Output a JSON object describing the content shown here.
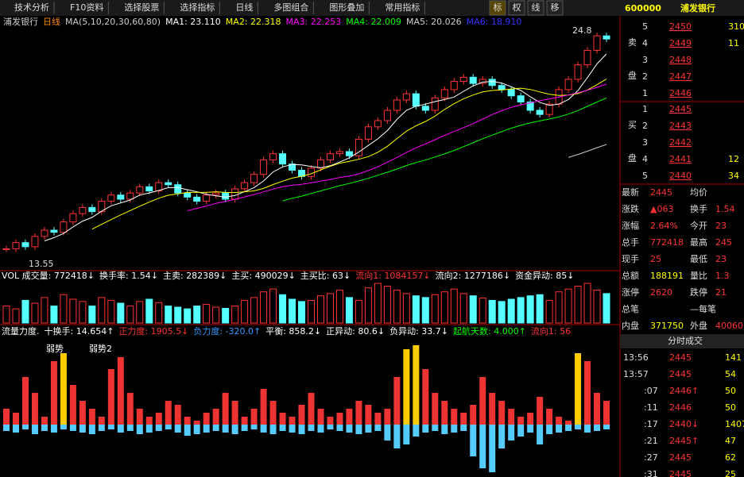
{
  "toolbar": {
    "menus": [
      "技术分析",
      "F10资料",
      "选择股票",
      "选择指标",
      "日线",
      "多图组合",
      "图形叠加",
      "常用指标"
    ],
    "buttons": [
      "标",
      "权",
      "线",
      "移"
    ],
    "stock_code": "600000",
    "stock_name": "浦发银行"
  },
  "main": {
    "name": "浦发银行",
    "period": "日线",
    "ma_label": "MA(5,10,20,30,60,80)",
    "ma_values": [
      "MA1: 23.110",
      "MA2: 22.318",
      "MA3: 22.253",
      "MA4: 22.009",
      "MA5: 20.026",
      "MA6: 18.910"
    ],
    "price_high": 24.8,
    "price_low": 13.55,
    "closes": [
      14.3,
      14.6,
      14.4,
      14.9,
      15.2,
      15.1,
      15.6,
      16.0,
      16.3,
      16.1,
      16.6,
      16.9,
      16.7,
      17.0,
      17.3,
      17.1,
      17.5,
      17.4,
      17.0,
      16.8,
      16.6,
      16.9,
      17.0,
      16.7,
      17.2,
      17.5,
      17.9,
      18.6,
      18.9,
      18.4,
      18.1,
      17.8,
      18.2,
      18.6,
      18.9,
      19.0,
      18.8,
      19.6,
      20.2,
      20.5,
      21.0,
      21.5,
      21.8,
      21.2,
      21.0,
      21.6,
      22.0,
      22.4,
      22.6,
      22.3,
      22.5,
      22.2,
      22.0,
      21.7,
      21.4,
      21.0,
      20.8,
      21.3,
      22.0,
      22.5,
      23.2,
      23.9,
      24.6,
      24.45
    ]
  },
  "volume": {
    "items": [
      "VOL 成交量: 772418↓",
      "换手率: 1.54↓",
      "主卖: 282389↓",
      "主买: 490029↓",
      "主买比: 63↓",
      "流向1: 1084157↓",
      "流向2: 1277186↓",
      "资金异动: 85↓"
    ],
    "bars": [
      30,
      25,
      40,
      35,
      45,
      30,
      50,
      42,
      38,
      30,
      45,
      40,
      35,
      30,
      38,
      42,
      36,
      30,
      28,
      25,
      30,
      33,
      28,
      26,
      30,
      40,
      45,
      55,
      60,
      50,
      42,
      38,
      40,
      48,
      52,
      58,
      45,
      40,
      62,
      70,
      65,
      58,
      52,
      48,
      45,
      50,
      55,
      60,
      52,
      48,
      44,
      40,
      38,
      42,
      45,
      48,
      50,
      40,
      55,
      60,
      65,
      70,
      58,
      52
    ]
  },
  "flow": {
    "items": [
      "流量力度.",
      "十换手: 14.654↑",
      "正力度: 1905.5↓",
      "负力度: -320.0↑",
      "平衡: 858.2↓",
      "正异动: 80.6↓",
      "负异动: 33.7↓",
      "起航天数: 4.000↑",
      "流向1: 56"
    ],
    "signals": [
      "弱势",
      "弱势2"
    ],
    "pos": [
      20,
      15,
      60,
      40,
      10,
      80,
      90,
      50,
      30,
      20,
      10,
      70,
      85,
      40,
      20,
      10,
      15,
      30,
      25,
      10,
      5,
      15,
      20,
      40,
      30,
      10,
      20,
      45,
      30,
      15,
      10,
      25,
      40,
      20,
      10,
      15,
      20,
      30,
      25,
      15,
      20,
      60,
      95,
      100,
      70,
      40,
      30,
      20,
      15,
      25,
      60,
      40,
      30,
      20,
      10,
      15,
      35,
      20,
      10,
      5,
      90,
      80,
      40,
      30
    ],
    "neg": [
      -8,
      -10,
      -6,
      -12,
      -8,
      -10,
      -6,
      -8,
      -10,
      -12,
      -8,
      -6,
      -10,
      -8,
      -12,
      -10,
      -8,
      -6,
      -10,
      -14,
      -12,
      -10,
      -8,
      -10,
      -12,
      -8,
      -6,
      -10,
      -12,
      -8,
      -10,
      -12,
      -8,
      -10,
      -6,
      -8,
      -10,
      -12,
      -10,
      -8,
      -20,
      -30,
      -25,
      -15,
      -10,
      -8,
      -12,
      -10,
      -8,
      -40,
      -55,
      -60,
      -30,
      -20,
      -15,
      -10,
      -25,
      -12,
      -10,
      -8,
      -6,
      -10,
      -8,
      -6
    ]
  },
  "order_book": {
    "sell_label": [
      "卖",
      "盘"
    ],
    "buy_label": [
      "买",
      "盘"
    ],
    "sell": [
      [
        "5",
        "2450",
        "310"
      ],
      [
        "4",
        "2449",
        "11"
      ],
      [
        "3",
        "2448"
      ],
      [
        "2",
        "2447"
      ],
      [
        "1",
        "2446"
      ]
    ],
    "buy": [
      [
        "1",
        "2445"
      ],
      [
        "2",
        "2443"
      ],
      [
        "3",
        "2442"
      ],
      [
        "4",
        "2441",
        "12"
      ],
      [
        "5",
        "2440",
        "34"
      ]
    ]
  },
  "quote": {
    "rows": [
      [
        "最新",
        "2445",
        "均价"
      ],
      [
        "涨跌",
        "▲063",
        "换手",
        "1.54"
      ],
      [
        "涨幅",
        "2.64%",
        "今开",
        "23"
      ],
      [
        "总手",
        "772418",
        "最高",
        "245"
      ],
      [
        "现手",
        "25",
        "最低",
        "23"
      ],
      [
        "总额",
        "188191",
        "量比",
        "1.3"
      ],
      [
        "涨停",
        "2620",
        "跌停",
        "21"
      ],
      [
        "总笔",
        "",
        "—每笔"
      ],
      [
        "内盘",
        "371750",
        "外盘",
        "40060"
      ]
    ]
  },
  "ticks": {
    "title": "分时成交",
    "rows": [
      [
        "13:56",
        "2445",
        "141"
      ],
      [
        "13:57",
        "2445",
        "54"
      ],
      [
        ":07",
        "2446↑",
        "50"
      ],
      [
        ":11",
        "2446",
        "50"
      ],
      [
        ":17",
        "2440↓",
        "1407"
      ],
      [
        ":21",
        "2445↑",
        "47"
      ],
      [
        ":27",
        "2445",
        "62"
      ],
      [
        ":31",
        "2445",
        "25"
      ]
    ]
  }
}
